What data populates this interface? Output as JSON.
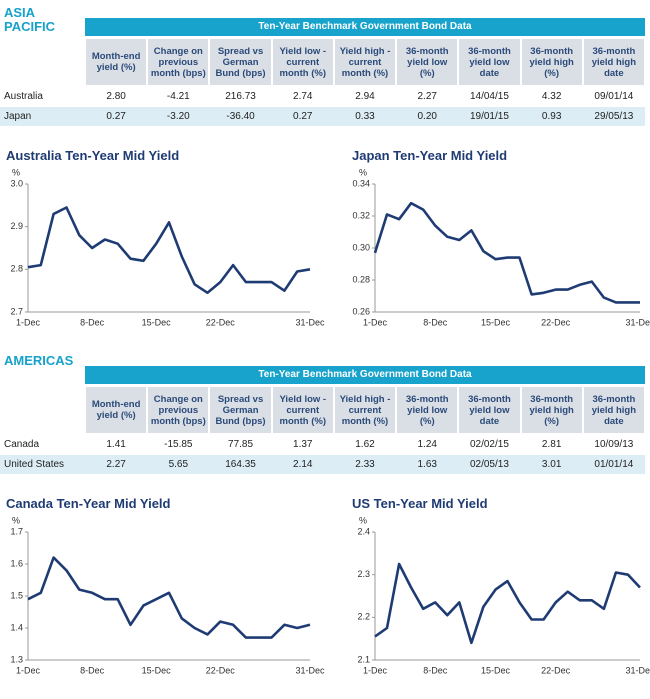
{
  "sections": [
    {
      "region": "ASIA PACIFIC",
      "table": {
        "title": "Ten-Year Benchmark Government Bond Data",
        "headers": [
          "Month-end yield (%)",
          "Change on previous month (bps)",
          "Spread vs German Bund (bps)",
          "Yield low - current month (%)",
          "Yield high - current month (%)",
          "36-month yield low (%)",
          "36-month yield low date",
          "36-month yield high (%)",
          "36-month yield high date"
        ],
        "rows": [
          [
            "Australia",
            "2.80",
            "-4.21",
            "216.73",
            "2.74",
            "2.94",
            "2.27",
            "14/04/15",
            "4.32",
            "09/01/14"
          ],
          [
            "Japan",
            "0.27",
            "-3.20",
            "-36.40",
            "0.27",
            "0.33",
            "0.20",
            "19/01/15",
            "0.93",
            "29/05/13"
          ]
        ]
      },
      "charts": [
        {
          "type": "line",
          "title": "Australia Ten-Year Mid Yield",
          "y_unit": "%",
          "categories": [
            "1-Dec",
            null,
            null,
            null,
            null,
            "8-Dec",
            null,
            null,
            null,
            null,
            "15-Dec",
            null,
            null,
            null,
            null,
            "22-Dec",
            null,
            null,
            null,
            null,
            null,
            null,
            "31-Dec"
          ],
          "series": [
            {
              "color": "#1f3b73",
              "values": [
                2.805,
                2.81,
                2.93,
                2.945,
                2.88,
                2.85,
                2.87,
                2.86,
                2.825,
                2.82,
                2.86,
                2.91,
                2.83,
                2.765,
                2.745,
                2.77,
                2.81,
                2.77,
                2.77,
                2.77,
                2.75,
                2.795,
                2.8
              ]
            }
          ],
          "ylim": [
            2.7,
            3.0
          ],
          "yticks": [
            2.7,
            2.8,
            2.9,
            {
              "value": 3.0,
              "label": "3.0"
            }
          ]
        },
        {
          "type": "line",
          "title": "Japan Ten-Year Mid Yield",
          "y_unit": "%",
          "categories": [
            "1-Dec",
            null,
            null,
            null,
            null,
            "8-Dec",
            null,
            null,
            null,
            null,
            "15-Dec",
            null,
            null,
            null,
            null,
            "22-Dec",
            null,
            null,
            null,
            null,
            null,
            null,
            "31-Dec"
          ],
          "series": [
            {
              "color": "#1f3b73",
              "values": [
                0.297,
                0.321,
                0.318,
                0.328,
                0.324,
                0.314,
                0.307,
                0.305,
                0.311,
                0.298,
                0.293,
                0.294,
                0.294,
                0.271,
                0.272,
                0.274,
                0.274,
                0.277,
                0.279,
                0.269,
                0.266,
                0.266,
                0.266
              ]
            }
          ],
          "ylim": [
            0.26,
            0.34
          ],
          "yticks": [
            0.26,
            0.28,
            {
              "value": 0.3,
              "label": "0.30"
            },
            0.32,
            0.34
          ]
        }
      ]
    },
    {
      "region": "AMERICAS",
      "table": {
        "title": "Ten-Year Benchmark Government Bond Data",
        "headers": [
          "Month-end yield (%)",
          "Change on previous month (bps)",
          "Spread vs German Bund (bps)",
          "Yield low - current month (%)",
          "Yield high - current month (%)",
          "36-month yield low (%)",
          "36-month yield low date",
          "36-month yield high (%)",
          "36-month yield high date"
        ],
        "rows": [
          [
            "Canada",
            "1.41",
            "-15.85",
            "77.85",
            "1.37",
            "1.62",
            "1.24",
            "02/02/15",
            "2.81",
            "10/09/13"
          ],
          [
            "United States",
            "2.27",
            "5.65",
            "164.35",
            "2.14",
            "2.33",
            "1.63",
            "02/05/13",
            "3.01",
            "01/01/14"
          ]
        ]
      },
      "charts": [
        {
          "type": "line",
          "title": "Canada Ten-Year Mid Yield",
          "y_unit": "%",
          "categories": [
            "1-Dec",
            null,
            null,
            null,
            null,
            "8-Dec",
            null,
            null,
            null,
            null,
            "15-Dec",
            null,
            null,
            null,
            null,
            "22-Dec",
            null,
            null,
            null,
            null,
            null,
            null,
            "31-Dec"
          ],
          "series": [
            {
              "color": "#1f3b73",
              "values": [
                1.49,
                1.51,
                1.62,
                1.58,
                1.52,
                1.51,
                1.49,
                1.49,
                1.41,
                1.47,
                1.49,
                1.51,
                1.43,
                1.4,
                1.38,
                1.42,
                1.41,
                1.37,
                1.37,
                1.37,
                1.41,
                1.4,
                1.41
              ]
            }
          ],
          "ylim": [
            1.3,
            1.7
          ],
          "yticks": [
            1.3,
            1.4,
            1.5,
            1.6,
            1.7
          ]
        },
        {
          "type": "line",
          "title": "US Ten-Year Mid Yield",
          "y_unit": "%",
          "categories": [
            "1-Dec",
            null,
            null,
            null,
            null,
            "8-Dec",
            null,
            null,
            null,
            null,
            "15-Dec",
            null,
            null,
            null,
            null,
            "22-Dec",
            null,
            null,
            null,
            null,
            null,
            null,
            "31-Dec"
          ],
          "series": [
            {
              "color": "#1f3b73",
              "values": [
                2.155,
                2.175,
                2.325,
                2.27,
                2.22,
                2.235,
                2.205,
                2.235,
                2.14,
                2.225,
                2.265,
                2.285,
                2.235,
                2.195,
                2.195,
                2.235,
                2.26,
                2.24,
                2.24,
                2.22,
                2.305,
                2.3,
                2.27
              ]
            }
          ],
          "ylim": [
            2.1,
            2.4
          ],
          "yticks": [
            2.1,
            2.2,
            2.3,
            2.4
          ]
        }
      ]
    }
  ]
}
